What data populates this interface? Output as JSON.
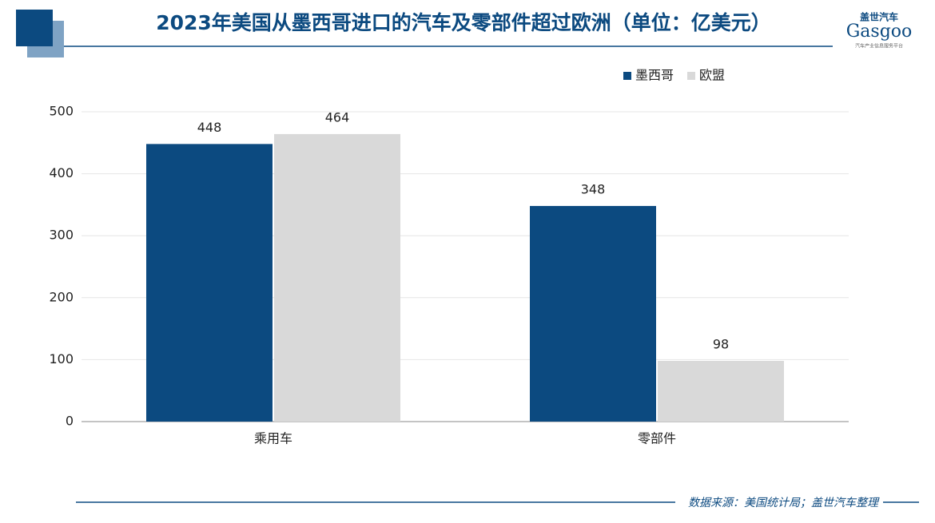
{
  "chart_data": {
    "type": "bar",
    "title": "2023年美国从墨西哥进口的汽车及零部件超过欧洲（单位：亿美元）",
    "categories": [
      "乘用车",
      "零部件"
    ],
    "series": [
      {
        "name": "墨西哥",
        "color": "#0c4a80",
        "values": [
          448,
          348
        ]
      },
      {
        "name": "欧盟",
        "color": "#d9d9d9",
        "values": [
          464,
          98
        ]
      }
    ],
    "ylim": [
      0,
      500
    ],
    "yticks": [
      0,
      100,
      200,
      300,
      400,
      500
    ],
    "grid": true,
    "legend": "top-right"
  },
  "logo": {
    "name": "盖世汽车",
    "brand": "Gasgoo",
    "tagline": "汽车产业信息服务平台"
  },
  "source": "数据来源：美国统计局；盖世汽车整理"
}
